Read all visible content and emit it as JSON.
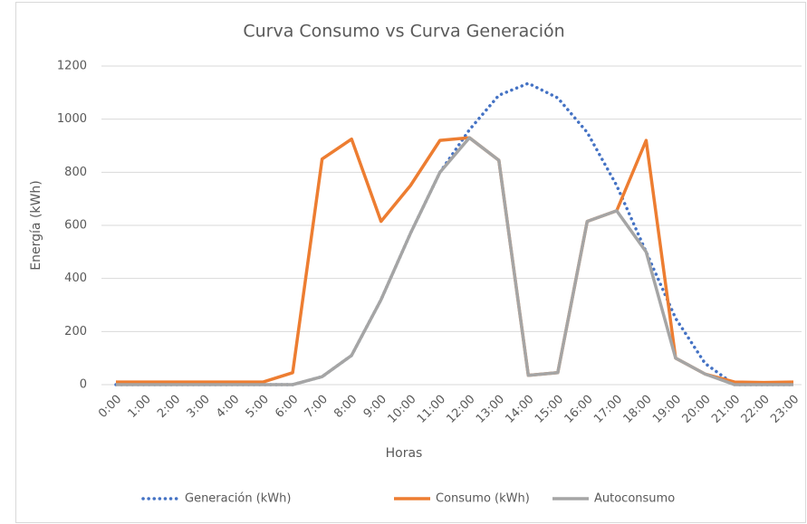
{
  "chart_data": {
    "type": "line",
    "title": "Curva Consumo vs Curva Generación",
    "x_label": "Horas",
    "y_label": "Energía (kWh)",
    "categories": [
      "0:00",
      "1:00",
      "2:00",
      "3:00",
      "4:00",
      "5:00",
      "6:00",
      "7:00",
      "8:00",
      "9:00",
      "10:00",
      "11:00",
      "12:00",
      "13:00",
      "14:00",
      "15:00",
      "16:00",
      "17:00",
      "18:00",
      "19:00",
      "20:00",
      "21:00",
      "22:00",
      "23:00"
    ],
    "series": [
      {
        "name": "Generación (kWh)",
        "color": "#4472c4",
        "dash": "dotted",
        "values": [
          0,
          0,
          0,
          0,
          0,
          0,
          0,
          30,
          110,
          320,
          570,
          800,
          960,
          1090,
          1135,
          1080,
          950,
          750,
          500,
          250,
          80,
          0,
          0,
          0
        ]
      },
      {
        "name": "Consumo (kWh)",
        "color": "#ed7d31",
        "dash": "solid",
        "values": [
          10,
          10,
          10,
          10,
          10,
          10,
          45,
          850,
          925,
          615,
          750,
          920,
          930,
          845,
          35,
          45,
          615,
          655,
          920,
          100,
          40,
          10,
          8,
          10
        ]
      },
      {
        "name": "Autoconsumo",
        "color": "#a5a5a5",
        "dash": "solid",
        "values": [
          0,
          0,
          0,
          0,
          0,
          0,
          0,
          30,
          110,
          320,
          570,
          800,
          930,
          845,
          35,
          45,
          615,
          655,
          500,
          100,
          40,
          0,
          0,
          0
        ]
      }
    ],
    "ylim": [
      0,
      1200
    ],
    "yticks": [
      0,
      200,
      400,
      600,
      800,
      1000,
      1200
    ],
    "grid": true,
    "legend": "bottom"
  }
}
